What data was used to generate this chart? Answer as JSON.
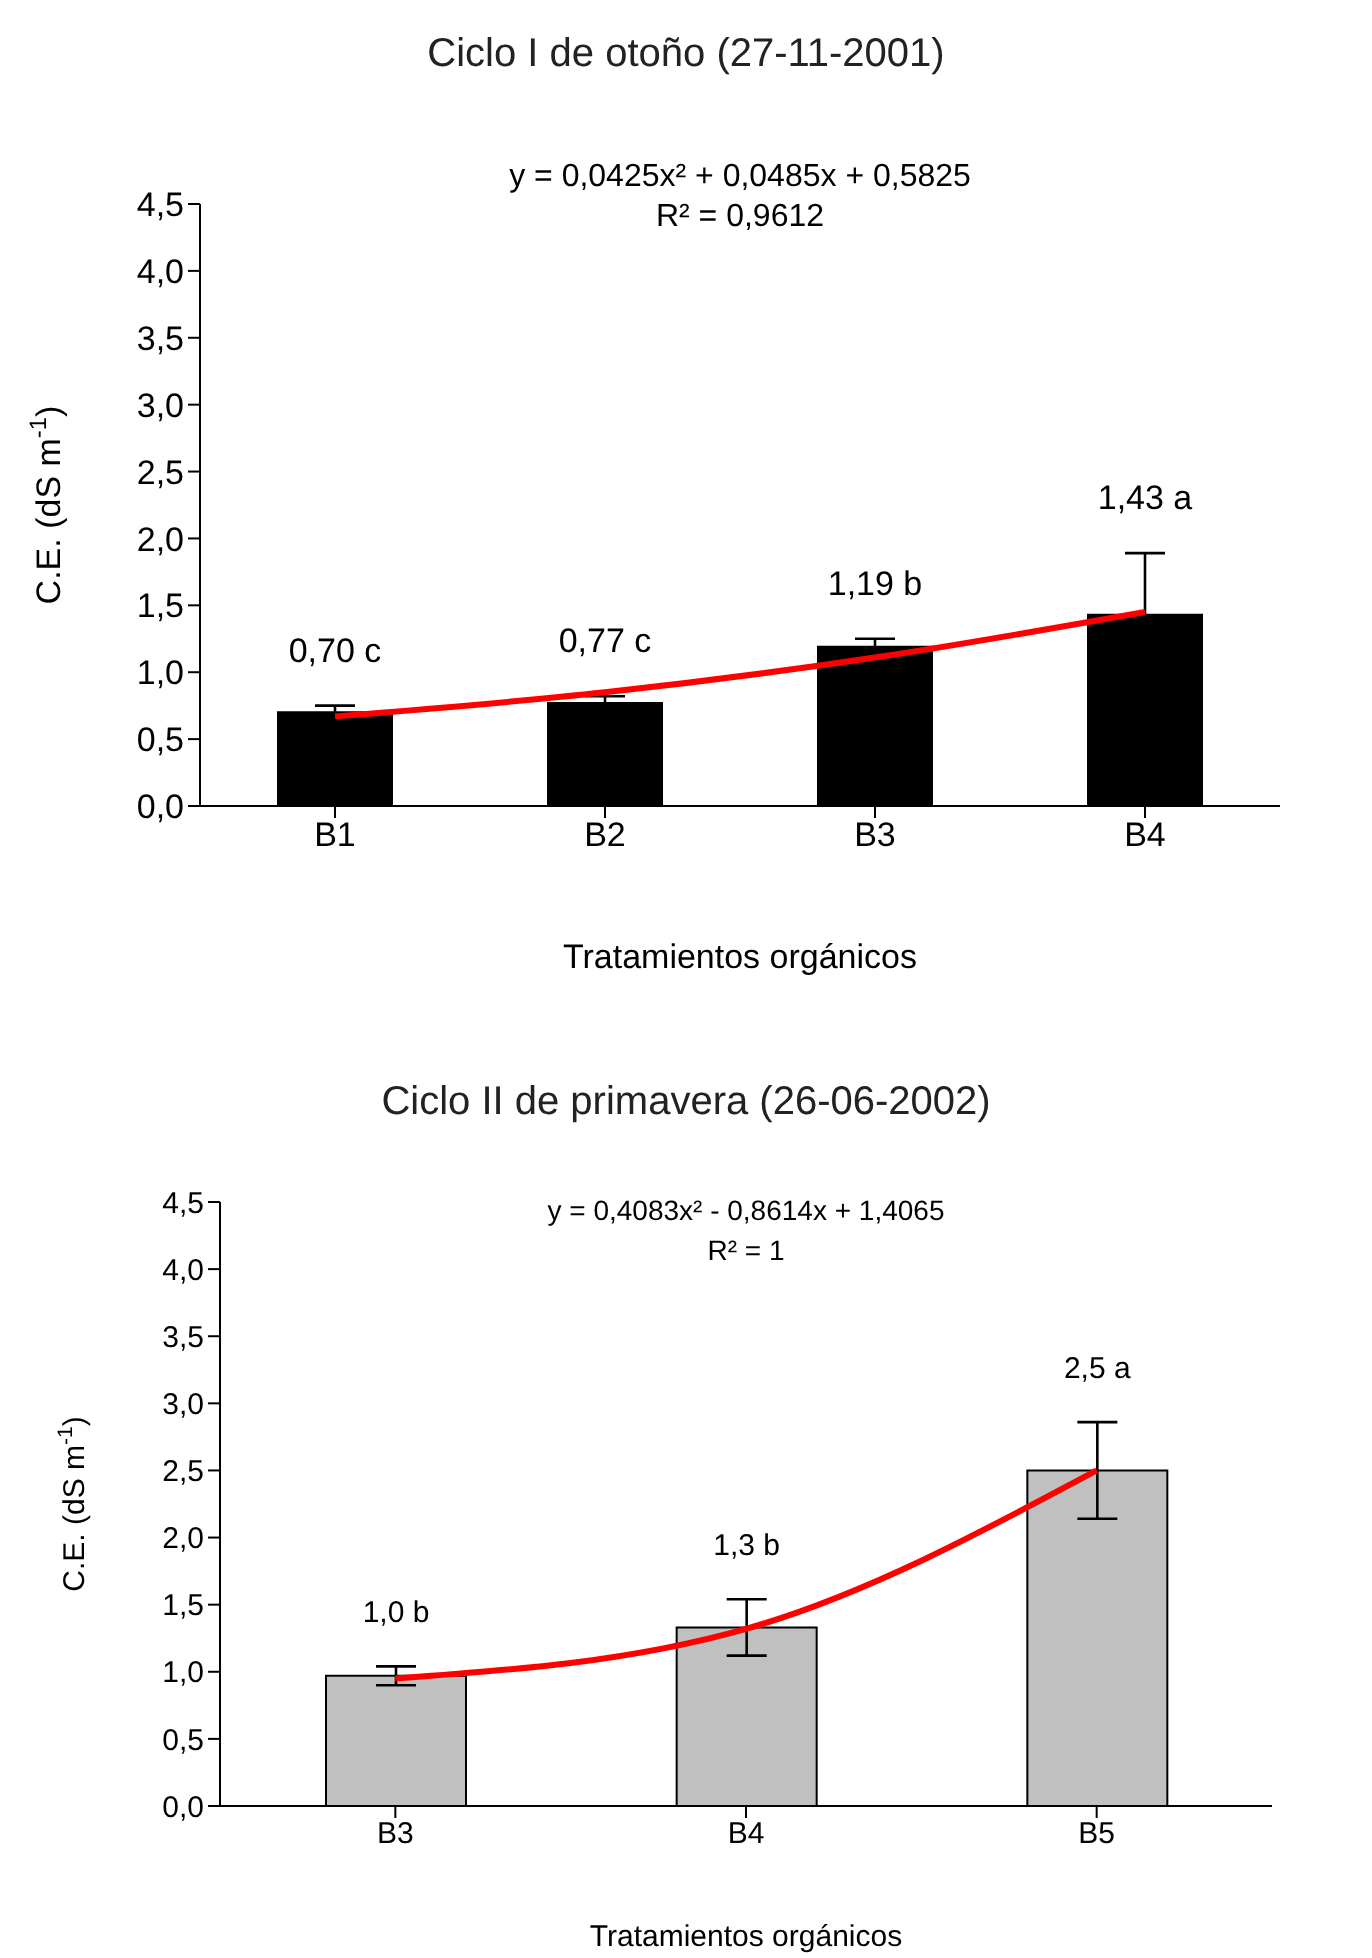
{
  "chart_data": [
    {
      "type": "bar",
      "title": "Ciclo I de otoño (27-11-2001)",
      "xlabel": "Tratamientos orgánicos",
      "ylabel": "C.E. (dS m$^{-1}$)",
      "categories": [
        "B1",
        "B2",
        "B3",
        "B4"
      ],
      "series": [
        {
          "color": "#000000",
          "values": [
            0.7,
            0.77,
            1.19,
            1.43
          ],
          "errors": [
            0.05,
            0.05,
            0.06,
            0.46
          ],
          "value_labels": [
            "0,70 c",
            "0,77 c",
            "1,19 b",
            "1,43 a"
          ]
        },
        {
          "type": "line",
          "color": "#ff0000",
          "x": [
            "B1",
            "B2",
            "B3",
            "B4"
          ],
          "values": [
            0.67,
            0.85,
            1.11,
            1.45
          ]
        }
      ],
      "ylim": [
        0,
        4.5
      ],
      "yticks": [
        {
          "value": 0,
          "label": "0,0"
        },
        {
          "value": 0.5,
          "label": "0,5"
        },
        {
          "value": 1,
          "label": "1,0"
        },
        {
          "value": 1.5,
          "label": "1,5"
        },
        {
          "value": 2,
          "label": "2,0"
        },
        {
          "value": 2.5,
          "label": "2,5"
        },
        {
          "value": 3,
          "label": "3,0"
        },
        {
          "value": 3.5,
          "label": "3,5"
        },
        {
          "value": 4,
          "label": "4,0"
        },
        {
          "value": 4.5,
          "label": "4,5"
        }
      ],
      "annotations": [
        "y = 0,0425x² + 0,0485x + 0,5825",
        "R² = 0,9612"
      ],
      "grid": false,
      "legend": false
    },
    {
      "type": "bar",
      "title": "Ciclo II de primavera (26-06-2002)",
      "xlabel": "Tratamientos orgánicos",
      "ylabel": "C.E. (dS m$^{-1}$)",
      "categories": [
        "B3",
        "B4",
        "B5"
      ],
      "series": [
        {
          "color": "#c0c0c0",
          "values": [
            0.97,
            1.33,
            2.5
          ],
          "errors": [
            0.07,
            0.21,
            0.36
          ],
          "value_labels": [
            "1,0 b",
            "1,3 b",
            "2,5 a"
          ]
        },
        {
          "type": "line",
          "color": "#ff0000",
          "x": [
            "B3",
            "B4",
            "B5"
          ],
          "values": [
            0.95,
            1.32,
            2.5
          ]
        }
      ],
      "ylim": [
        0,
        4.5
      ],
      "yticks": [
        {
          "value": 0,
          "label": "0,0"
        },
        {
          "value": 0.5,
          "label": "0,5"
        },
        {
          "value": 1,
          "label": "1,0"
        },
        {
          "value": 1.5,
          "label": "1,5"
        },
        {
          "value": 2,
          "label": "2,0"
        },
        {
          "value": 2.5,
          "label": "2,5"
        },
        {
          "value": 3,
          "label": "3,0"
        },
        {
          "value": 3.5,
          "label": "3,5"
        },
        {
          "value": 4,
          "label": "4,0"
        },
        {
          "value": 4.5,
          "label": "4,5"
        }
      ],
      "annotations": [
        "y = 0,4083x² - 0,8614x + 1,4065",
        "R² = 1"
      ],
      "grid": false,
      "legend": false
    }
  ]
}
